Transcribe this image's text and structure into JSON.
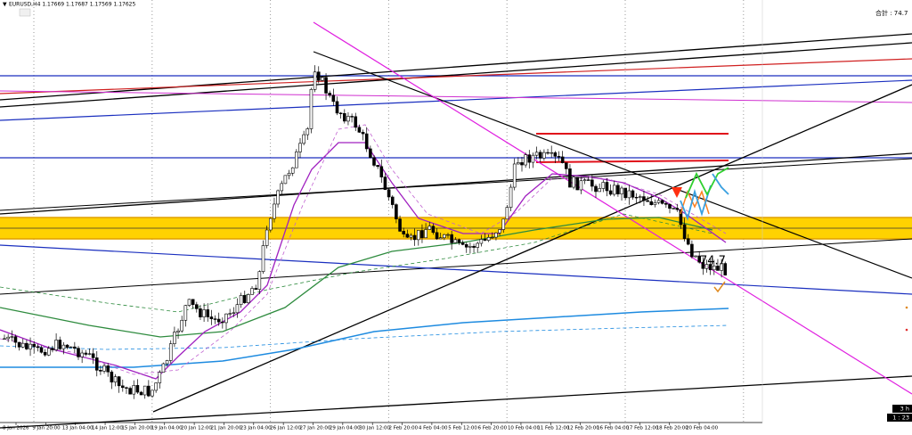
{
  "header": {
    "symbol_info": "EURUSD,H4  1.17669 1.17687 1.17569 1.17625"
  },
  "total_label": "合計 : 74.7",
  "annotation": "74.7",
  "x_axis": {
    "labels": [
      "8 Jan 2026",
      "9 Jan 20:00",
      "13 Jan 04:00",
      "14 Jan 12:00",
      "15 Jan 20:00",
      "19 Jan 04:00",
      "20 Jan 12:00",
      "21 Jan 20:00",
      "23 Jan 04:00",
      "26 Jan 12:00",
      "27 Jan 20:00",
      "29 Jan 04:00",
      "30 Jan 12:00",
      "2 Feb 20:00",
      "4 Feb 04:00",
      "5 Feb 12:00",
      "6 Feb 20:00",
      "10 Feb 04:00",
      "11 Feb 12:00",
      "12 Feb 20:00",
      "16 Feb 04:00",
      "17 Feb 12:00",
      "18 Feb 20:00",
      "20 Feb 04:00"
    ]
  },
  "timer": {
    "period": "3 h",
    "countdown": "1 : 23"
  }
}
